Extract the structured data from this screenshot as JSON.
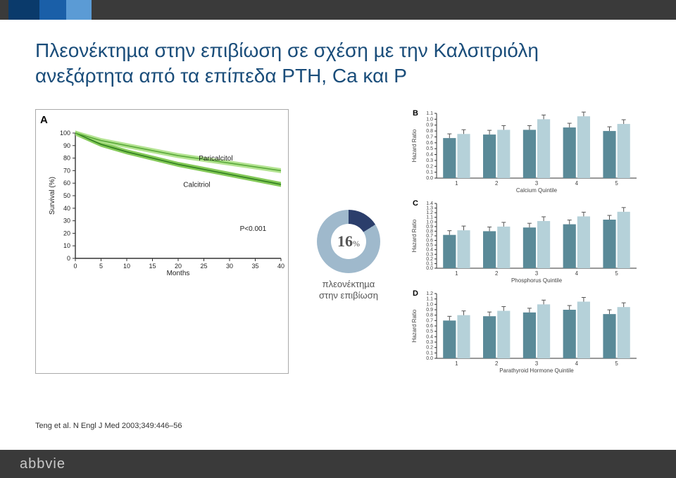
{
  "title": "Πλεονέκτηµα στην επιβίωση σε σχέση µε την Καλσιτριόλη ανεξάρτητα από τα επίπεδα PTH, Ca και P",
  "panelA": {
    "label": "A",
    "ylabel": "Survival (%)",
    "xlabel": "Months",
    "pvalue": "P<0.001",
    "legend_paricalcitol": "Paricalcitol",
    "legend_calcitriol": "Calcitriol",
    "yticks": [
      0,
      10,
      20,
      30,
      40,
      50,
      60,
      70,
      80,
      90,
      100
    ],
    "xticks": [
      0,
      5,
      10,
      15,
      20,
      25,
      30,
      35,
      40
    ],
    "color_paricalcitol": "#5aa93a",
    "color_calcitriol": "#2e7d1e",
    "band_paricalcitol": "#a6de7e",
    "band_calcitriol": "#6fbf3c",
    "bg": "#ffffff",
    "axis_color": "#333333",
    "paricalcitol_y": [
      100,
      94,
      90,
      86,
      82,
      79,
      76,
      73,
      70
    ],
    "calcitriol_y": [
      100,
      91,
      85,
      80,
      75,
      71,
      67,
      63,
      59
    ]
  },
  "donut": {
    "value": "16",
    "unit": "%",
    "caption_l1": "πλεονέκτηµα",
    "caption_l2": "στην επιβίωση",
    "color_main": "#9fb9cc",
    "color_accent": "#2b3e6b",
    "pct_accent": 16
  },
  "barCharts": {
    "ylabel": "Hazard Ratio",
    "xlabels": [
      "Calcium Quintile",
      "Phosphorus Quintile",
      "Parathyroid Hormone Quintile"
    ],
    "xticks": [
      1,
      2,
      3,
      4,
      5
    ],
    "letters": [
      "B",
      "C",
      "D"
    ],
    "bar_color_light": "#b5d1d9",
    "bar_color_dark": "#5a8a98",
    "axis_color": "#333333",
    "font_color": "#444444",
    "charts": [
      {
        "ylim": [
          0.0,
          1.1
        ],
        "ytick": 0.1,
        "pairs": [
          [
            0.68,
            0.75
          ],
          [
            0.74,
            0.82
          ],
          [
            0.82,
            1.0
          ],
          [
            0.86,
            1.05
          ],
          [
            0.8,
            0.92
          ]
        ]
      },
      {
        "ylim": [
          0.0,
          1.4
        ],
        "ytick": 0.1,
        "pairs": [
          [
            0.72,
            0.82
          ],
          [
            0.8,
            0.9
          ],
          [
            0.88,
            1.02
          ],
          [
            0.95,
            1.12
          ],
          [
            1.05,
            1.22
          ]
        ]
      },
      {
        "ylim": [
          0.0,
          1.2
        ],
        "ytick": 0.1,
        "pairs": [
          [
            0.7,
            0.8
          ],
          [
            0.78,
            0.88
          ],
          [
            0.85,
            1.0
          ],
          [
            0.9,
            1.05
          ],
          [
            0.82,
            0.95
          ]
        ]
      }
    ]
  },
  "citation": "Teng et al. N Engl J Med 2003;349:446–56",
  "logo": "abbvie"
}
